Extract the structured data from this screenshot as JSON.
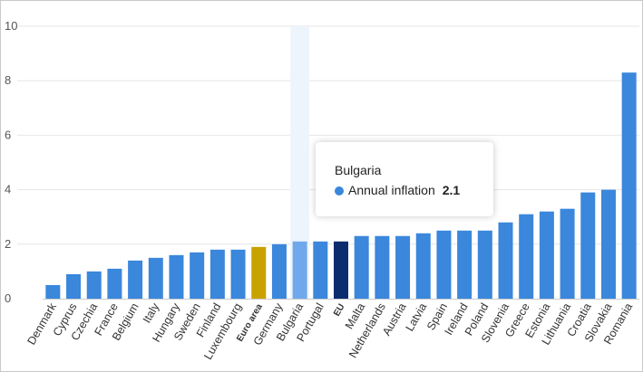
{
  "chart_data": {
    "type": "bar",
    "categories": [
      "Denmark",
      "Cyprus",
      "Czechia",
      "France",
      "Belgium",
      "Italy",
      "Hungary",
      "Sweden",
      "Finland",
      "Luxembourg",
      "Euro area",
      "Germany",
      "Bulgaria",
      "Portugal",
      "EU",
      "Malta",
      "Netherlands",
      "Austria",
      "Latvia",
      "Spain",
      "Ireland",
      "Poland",
      "Slovenia",
      "Greece",
      "Estonia",
      "Lithuania",
      "Croatia",
      "Slovakia",
      "Romania"
    ],
    "series": [
      {
        "name": "Annual inflation",
        "values": [
          0.5,
          0.9,
          1.0,
          1.1,
          1.4,
          1.5,
          1.6,
          1.7,
          1.8,
          1.8,
          1.9,
          2.0,
          2.1,
          2.1,
          2.1,
          2.3,
          2.3,
          2.3,
          2.4,
          2.5,
          2.5,
          2.5,
          2.8,
          3.1,
          3.2,
          3.3,
          3.9,
          4.0,
          8.3
        ]
      }
    ],
    "ylim": [
      0,
      10
    ],
    "yticks": [
      0,
      2,
      4,
      6,
      8,
      10
    ],
    "grid": true,
    "bold_categories": [
      "Euro area",
      "EU"
    ],
    "highlighted_category": "Bulgaria",
    "colors": {
      "default": "#3a87dc",
      "Euro area": "#c9a200",
      "EU": "#0b2c6f",
      "Bulgaria": "#6fa9ec",
      "hover_band": "#eef4fb",
      "grid": "#e6e6e6",
      "axis": "#cccccc"
    }
  },
  "tooltip": {
    "title": "Bulgaria",
    "series_name": "Annual inflation",
    "value": "2.1"
  }
}
